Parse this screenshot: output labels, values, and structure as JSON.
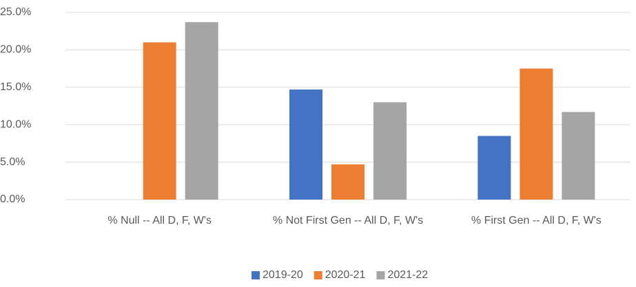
{
  "chart_data": {
    "type": "bar",
    "categories": [
      "% Null -- All D, F, W's",
      "% Not First Gen --  All D, F, W's",
      "% First Gen -- All D, F, W's"
    ],
    "series": [
      {
        "name": "2019-20",
        "color": "#4472c4",
        "values": [
          null,
          14.7,
          8.5
        ]
      },
      {
        "name": "2020-21",
        "color": "#ed7d31",
        "values": [
          21.0,
          4.7,
          17.5
        ]
      },
      {
        "name": "2021-22",
        "color": "#a5a5a5",
        "values": [
          23.7,
          13.0,
          11.7
        ]
      }
    ],
    "ylim": [
      0,
      25
    ],
    "yticks": [
      {
        "value": 0,
        "label": "0.0%"
      },
      {
        "value": 5,
        "label": "5.0%"
      },
      {
        "value": 10,
        "label": "10.0%"
      },
      {
        "value": 15,
        "label": "15.0%"
      },
      {
        "value": 20,
        "label": "20.0%"
      },
      {
        "value": 25,
        "label": "25.0%"
      }
    ],
    "grid": true,
    "legend": "bottom"
  }
}
